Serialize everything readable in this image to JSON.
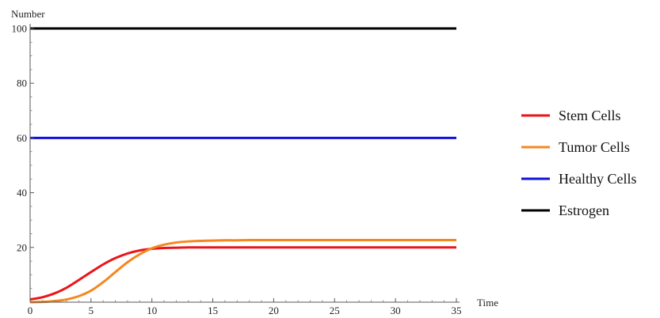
{
  "chart_data": {
    "type": "line",
    "title": "",
    "xlabel": "Time",
    "ylabel": "Number",
    "xlim": [
      0,
      35
    ],
    "ylim": [
      0,
      100
    ],
    "xticks": [
      0,
      5,
      10,
      15,
      20,
      25,
      30,
      35
    ],
    "yticks": [
      20,
      40,
      60,
      80,
      100
    ],
    "grid": false,
    "legend_position": "right",
    "series": [
      {
        "name": "Stem Cells",
        "color": "#e8161b",
        "x": [
          0,
          1,
          2,
          3,
          4,
          5,
          6,
          7,
          8,
          9,
          10,
          11,
          12,
          13,
          14,
          15,
          17,
          20,
          25,
          30,
          35
        ],
        "y": [
          1,
          1.8,
          3.2,
          5.3,
          8.1,
          11.0,
          13.8,
          16.1,
          17.8,
          18.9,
          19.5,
          19.8,
          19.9,
          20.0,
          20.0,
          20.0,
          20.0,
          20.0,
          20.0,
          20.0,
          20.0
        ]
      },
      {
        "name": "Tumor Cells",
        "color": "#f5871f",
        "x": [
          0,
          1,
          2,
          3,
          4,
          5,
          6,
          7,
          8,
          9,
          10,
          11,
          12,
          13,
          14,
          15,
          16,
          17,
          18,
          20,
          25,
          30,
          35
        ],
        "y": [
          0,
          0.1,
          0.4,
          1.0,
          2.2,
          4.2,
          7.3,
          11.0,
          14.6,
          17.5,
          19.7,
          21.0,
          21.8,
          22.2,
          22.4,
          22.5,
          22.6,
          22.6,
          22.7,
          22.7,
          22.7,
          22.7,
          22.7
        ]
      },
      {
        "name": "Healthy Cells",
        "color": "#1111dd",
        "x": [
          0,
          35
        ],
        "y": [
          60,
          60
        ]
      },
      {
        "name": "Estrogen",
        "color": "#000000",
        "x": [
          0,
          35
        ],
        "y": [
          100,
          100
        ]
      }
    ]
  }
}
